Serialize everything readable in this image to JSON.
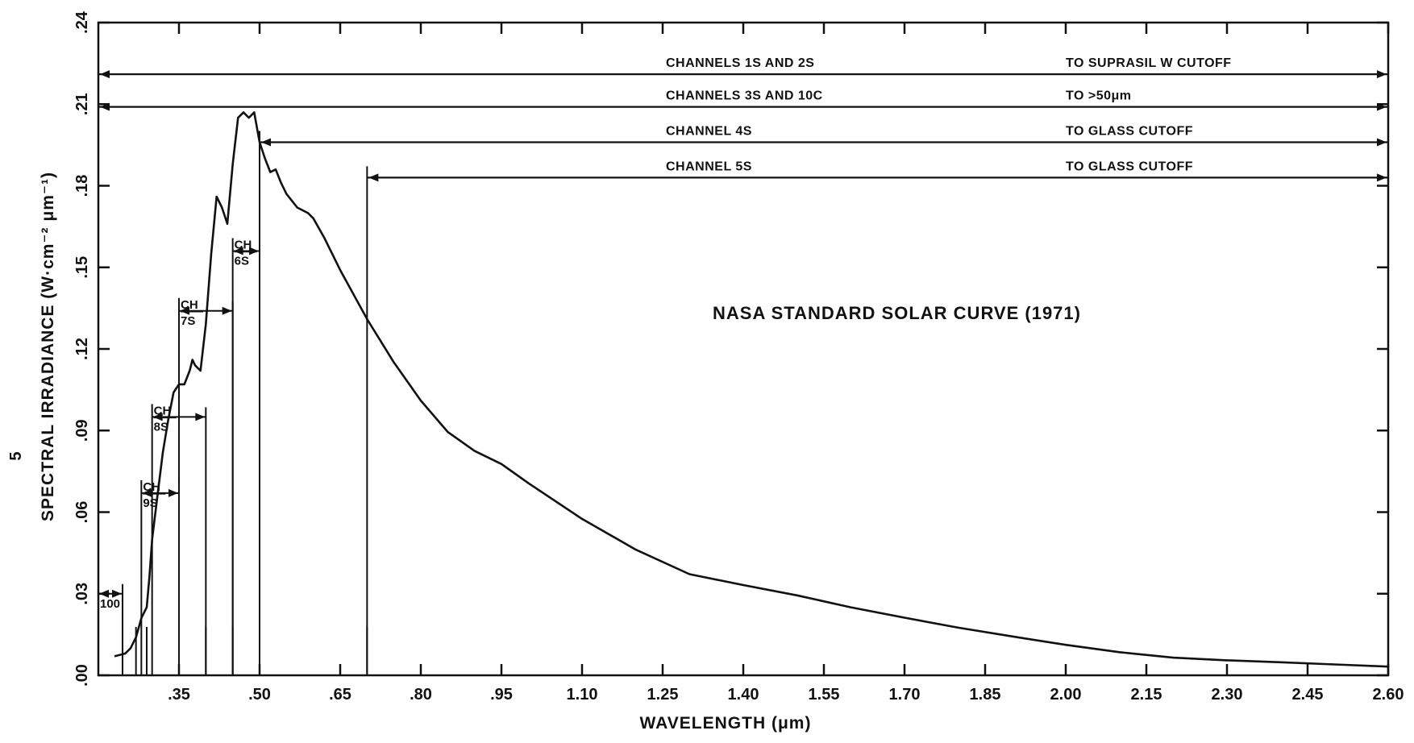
{
  "page_mark": "5",
  "chart_data": {
    "type": "line",
    "title": "",
    "xlabel": "WAVELENGTH (μm)",
    "ylabel": "SPECTRAL IRRADIANCE (W·cm⁻² μm⁻¹)",
    "xlim": [
      0.2,
      2.6
    ],
    "ylim": [
      0.0,
      0.24
    ],
    "x_ticks": [
      0.35,
      0.5,
      0.65,
      0.8,
      0.95,
      1.1,
      1.25,
      1.4,
      1.55,
      1.7,
      1.85,
      2.0,
      2.15,
      2.3,
      2.45,
      2.6
    ],
    "x_tick_labels": [
      ".35",
      ".50",
      ".65",
      ".80",
      ".95",
      "1.10",
      "1.25",
      "1.40",
      "1.55",
      "1.70",
      "1.85",
      "2.00",
      "2.15",
      "2.30",
      "2.45",
      "2.60"
    ],
    "y_ticks": [
      0.0,
      0.03,
      0.06,
      0.09,
      0.12,
      0.15,
      0.18,
      0.21,
      0.24
    ],
    "y_tick_labels": [
      ".00",
      ".03",
      ".06",
      ".09",
      ".12",
      ".15",
      ".18",
      ".21",
      ".24"
    ],
    "grid": false,
    "series": [
      {
        "x": [
          0.23,
          0.25,
          0.26,
          0.27,
          0.28,
          0.29,
          0.295,
          0.3,
          0.31,
          0.32,
          0.33,
          0.34,
          0.35,
          0.36,
          0.37,
          0.375,
          0.38,
          0.39,
          0.4,
          0.41,
          0.42,
          0.43,
          0.44,
          0.45,
          0.46,
          0.47,
          0.48,
          0.49,
          0.5,
          0.51,
          0.52,
          0.53,
          0.54,
          0.55,
          0.57,
          0.59,
          0.6,
          0.62,
          0.65,
          0.7,
          0.75,
          0.8,
          0.85,
          0.9,
          0.95,
          1.0,
          1.1,
          1.2,
          1.3,
          1.4,
          1.5,
          1.6,
          1.7,
          1.8,
          1.9,
          2.0,
          2.1,
          2.2,
          2.3,
          2.4,
          2.5,
          2.6
        ],
        "y": [
          0.007,
          0.008,
          0.01,
          0.014,
          0.021,
          0.025,
          0.036,
          0.05,
          0.066,
          0.082,
          0.094,
          0.104,
          0.107,
          0.107,
          0.112,
          0.116,
          0.114,
          0.112,
          0.129,
          0.155,
          0.176,
          0.172,
          0.166,
          0.188,
          0.205,
          0.207,
          0.205,
          0.207,
          0.196,
          0.19,
          0.185,
          0.186,
          0.181,
          0.177,
          0.172,
          0.17,
          0.168,
          0.161,
          0.149,
          0.131,
          0.115,
          0.101,
          0.0895,
          0.0825,
          0.0777,
          0.0707,
          0.0575,
          0.0462,
          0.0372,
          0.0332,
          0.0294,
          0.025,
          0.0212,
          0.0175,
          0.0143,
          0.0112,
          0.0085,
          0.0065,
          0.0055,
          0.0048,
          0.004,
          0.0032
        ]
      }
    ],
    "annotations": {
      "main_label": "NASA STANDARD SOLAR CURVE (1971)",
      "bands": [
        {
          "left": "CHANNELS 1S AND 2S",
          "right": "TO SUPRASIL W CUTOFF",
          "y": 0.221,
          "x_start": 0.2
        },
        {
          "left": "CHANNELS 3S AND 10C",
          "right": "TO >50μm",
          "y": 0.209,
          "x_start": 0.2
        },
        {
          "left": "CHANNEL 4S",
          "right": "TO GLASS CUTOFF",
          "y": 0.196,
          "x_start": 0.5
        },
        {
          "left": "CHANNEL 5S",
          "right": "TO GLASS CUTOFF",
          "y": 0.183,
          "x_start": 0.7
        }
      ],
      "channels": [
        {
          "label_top": "CH",
          "label_bottom": "6S",
          "x_start": 0.45,
          "x_end": 0.5,
          "y": 0.156
        },
        {
          "label_top": "CH",
          "label_bottom": "7S",
          "x_start": 0.35,
          "x_end": 0.45,
          "y": 0.134
        },
        {
          "label_top": "CH",
          "label_bottom": "8S",
          "x_start": 0.3,
          "x_end": 0.4,
          "y": 0.095
        },
        {
          "label_top": "CH",
          "label_bottom": "9S",
          "x_start": 0.28,
          "x_end": 0.35,
          "y": 0.067
        },
        {
          "label_top": "",
          "label_bottom": "100",
          "x_start": 0.2,
          "x_end": 0.245,
          "y": 0.03
        }
      ],
      "cutoff_lines": [
        0.245,
        0.27,
        0.29,
        0.35,
        0.4,
        0.45,
        0.5,
        0.7
      ]
    }
  }
}
